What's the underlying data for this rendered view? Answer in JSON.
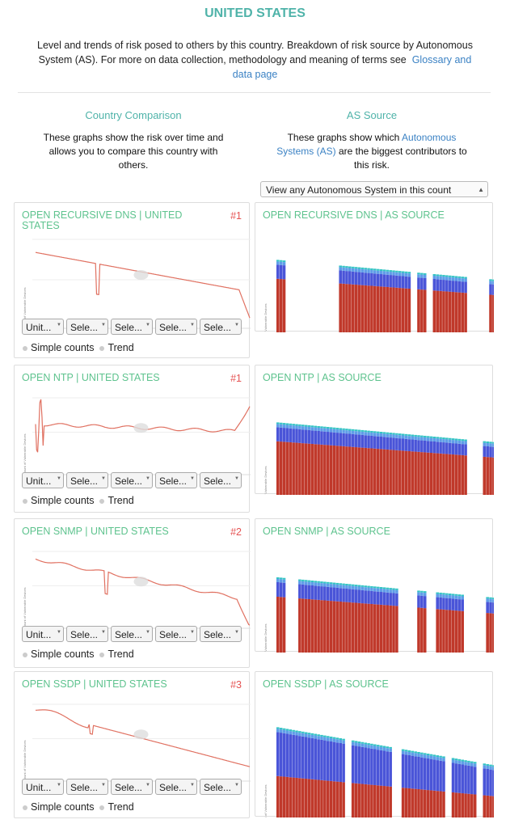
{
  "page": {
    "title": "UNITED STATES",
    "intro_line1": "Level and trends of risk posed to others by this country. Breakdown of risk source by Autonomous",
    "intro_line2": "System (AS). For more on data collection, methodology and meaning of terms see",
    "intro_link_a": "Glossary and",
    "intro_link_b": "data page"
  },
  "columns": {
    "left_heading": "Country Comparison",
    "left_desc_1": "These graphs show the risk over time and",
    "left_desc_2": "allows you to compare this country with",
    "left_desc_3": "others.",
    "right_heading": "AS Source",
    "right_desc_1a": "These graphs show which",
    "right_desc_1b": "Autonomous",
    "right_desc_2a": "Systems (AS)",
    "right_desc_2b": "are the biggest contributors to",
    "right_desc_3": "this risk.",
    "as_select": "View any Autonomous System in this count"
  },
  "controls": {
    "country_select": "Unit...",
    "other_select": "Sele...",
    "radio_simple": "Simple counts",
    "radio_trend": "Trend"
  },
  "colors": {
    "accent": "#4fb3a9",
    "green_title": "#5ec38e",
    "rank": "#e55353",
    "line": "#e07060",
    "bar_red": "#c0392b",
    "bar_blue": "#4a55d8",
    "bar_light": "#5f9de8",
    "bar_cyan": "#34c4c4"
  },
  "panels": [
    {
      "left_title_a": "OPEN RECURSIVE DNS  | UNITED",
      "left_title_b": "STATES",
      "rank": "#1",
      "right_title": "OPEN RECURSIVE DNS  |  AS SOURCE",
      "y_axis": "Count of Vulnerable Devices"
    },
    {
      "left_title_a": "OPEN NTP  | UNITED STATES",
      "left_title_b": "",
      "rank": "#1",
      "right_title": "OPEN NTP  |  AS SOURCE",
      "y_axis": "Count of Vulnerable Devices"
    },
    {
      "left_title_a": "OPEN SNMP  | UNITED STATES",
      "left_title_b": "",
      "rank": "#2",
      "right_title": "OPEN SNMP  |  AS SOURCE",
      "y_axis": "Count of Vulnerable Devices"
    },
    {
      "left_title_a": "OPEN SSDP  | UNITED STATES",
      "left_title_b": "",
      "rank": "#3",
      "right_title": "OPEN SSDP  |  AS SOURCE",
      "y_axis": "Count of Vulnerable Devices"
    }
  ]
}
